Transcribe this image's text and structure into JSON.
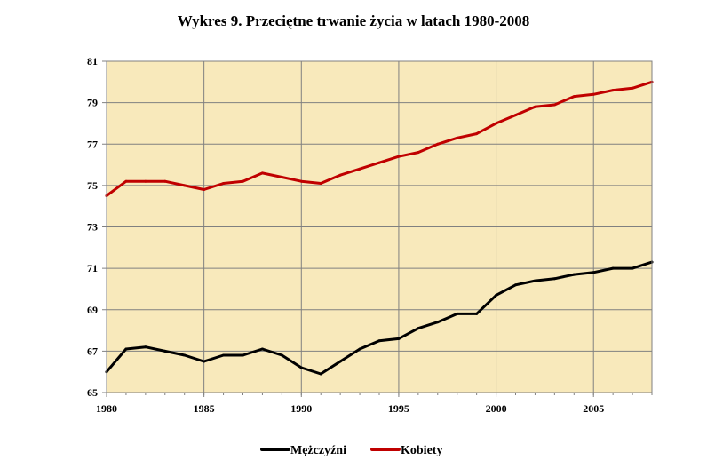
{
  "chart_data": {
    "type": "line",
    "title": "Wykres 9. Przeciętne trwanie życia w latach 1980-2008",
    "xlabel": "",
    "ylabel": "",
    "xlim": [
      1980,
      2008
    ],
    "ylim": [
      65,
      81
    ],
    "x_ticks": [
      1980,
      1985,
      1990,
      1995,
      2000,
      2005
    ],
    "y_ticks": [
      65,
      67,
      69,
      71,
      73,
      75,
      77,
      79,
      81
    ],
    "grid": true,
    "legend_position": "bottom",
    "plot_background": "#f8e9bb",
    "x": [
      1980,
      1981,
      1982,
      1983,
      1984,
      1985,
      1986,
      1987,
      1988,
      1989,
      1990,
      1991,
      1992,
      1993,
      1994,
      1995,
      1996,
      1997,
      1998,
      1999,
      2000,
      2001,
      2002,
      2003,
      2004,
      2005,
      2006,
      2007,
      2008
    ],
    "series": [
      {
        "name": "Mężczyźni",
        "color": "#000000",
        "values": [
          66.0,
          67.1,
          67.2,
          67.0,
          66.8,
          66.5,
          66.8,
          66.8,
          67.1,
          66.8,
          66.2,
          65.9,
          66.5,
          67.1,
          67.5,
          67.6,
          68.1,
          68.4,
          68.8,
          68.8,
          69.7,
          70.2,
          70.4,
          70.5,
          70.7,
          70.8,
          71.0,
          71.0,
          71.3
        ]
      },
      {
        "name": "Kobiety",
        "color": "#c00000",
        "values": [
          74.5,
          75.2,
          75.2,
          75.2,
          75.0,
          74.8,
          75.1,
          75.2,
          75.6,
          75.4,
          75.2,
          75.1,
          75.5,
          75.8,
          76.1,
          76.4,
          76.6,
          77.0,
          77.3,
          77.5,
          78.0,
          78.4,
          78.8,
          78.9,
          79.3,
          79.4,
          79.6,
          79.7,
          80.0
        ]
      }
    ]
  }
}
